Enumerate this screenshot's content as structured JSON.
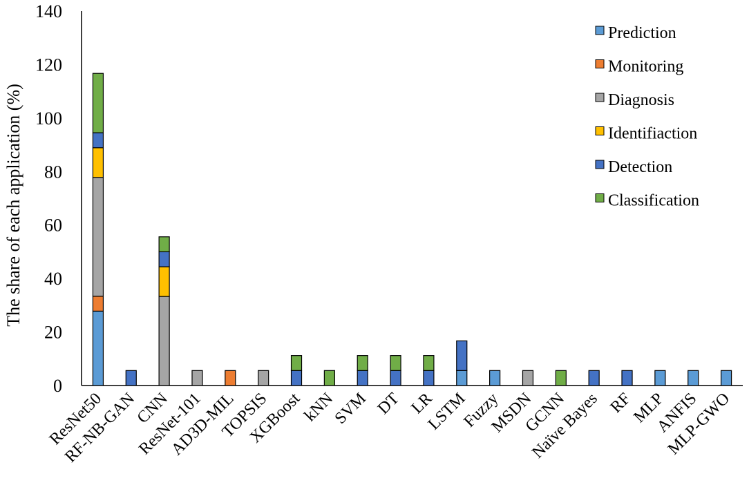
{
  "chart_data": {
    "type": "bar",
    "stacked": true,
    "ylabel": "The share of each application (%)",
    "xlabel": "",
    "ylim": [
      0,
      140
    ],
    "yticks": [
      0,
      20,
      40,
      60,
      80,
      100,
      120,
      140
    ],
    "grid": false,
    "legend_position": "top-right",
    "categories": [
      "ResNet50",
      "RF-NB-GAN",
      "CNN",
      "ResNet-101",
      "AD3D-MIL",
      "TOPSIS",
      "XGBoost",
      "kNN",
      "SVM",
      "DT",
      "LR",
      "LSTM",
      "Fuzzy",
      "MSDN",
      "GCNN",
      "Naïve Bayes",
      "RF",
      "MLP",
      "ANFIS",
      "MLP-GWO"
    ],
    "series": [
      {
        "name": "Prediction",
        "color": "#5B9BD5",
        "values": [
          27.8,
          0,
          0,
          0,
          0,
          0,
          0,
          0,
          0,
          0,
          0,
          5.6,
          5.6,
          0,
          0,
          0,
          0,
          5.6,
          5.6,
          5.6
        ]
      },
      {
        "name": "Monitoring",
        "color": "#ED7D31",
        "values": [
          5.6,
          0,
          0,
          0,
          5.6,
          0,
          0,
          0,
          0,
          0,
          0,
          0,
          0,
          0,
          0,
          0,
          0,
          0,
          0,
          0
        ]
      },
      {
        "name": "Diagnosis",
        "color": "#A5A5A5",
        "values": [
          44.4,
          0,
          33.3,
          5.6,
          0,
          5.6,
          0,
          0,
          0,
          0,
          0,
          0,
          0,
          5.6,
          0,
          0,
          0,
          0,
          0,
          0
        ]
      },
      {
        "name": "Identifiaction",
        "color": "#FFC000",
        "values": [
          11.1,
          0,
          11.1,
          0,
          0,
          0,
          0,
          0,
          0,
          0,
          0,
          0,
          0,
          0,
          0,
          0,
          0,
          0,
          0,
          0
        ]
      },
      {
        "name": "Detection",
        "color": "#4472C4",
        "values": [
          5.6,
          5.6,
          5.6,
          0,
          0,
          0,
          5.6,
          0,
          5.6,
          5.6,
          5.6,
          11.1,
          0,
          0,
          0,
          5.6,
          5.6,
          0,
          0,
          0
        ]
      },
      {
        "name": "Classification",
        "color": "#70AD47",
        "values": [
          22.2,
          0,
          5.6,
          0,
          0,
          0,
          5.6,
          5.6,
          5.6,
          5.6,
          5.6,
          0,
          0,
          0,
          5.6,
          0,
          0,
          0,
          0,
          0
        ]
      }
    ]
  }
}
